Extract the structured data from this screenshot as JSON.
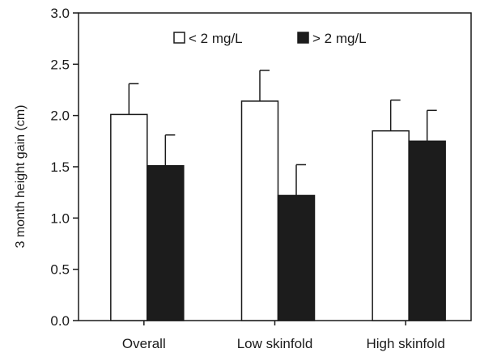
{
  "chart_data": {
    "type": "bar",
    "categories": [
      "Overall",
      "Low skinfold",
      "High skinfold"
    ],
    "series": [
      {
        "name": "< 2 mg/L",
        "values": [
          2.01,
          2.14,
          1.85
        ],
        "errors": [
          0.3,
          0.3,
          0.3
        ],
        "fill": "#ffffff"
      },
      {
        "name": "> 2 mg/L",
        "values": [
          1.51,
          1.22,
          1.75
        ],
        "errors": [
          0.3,
          0.3,
          0.3
        ],
        "fill": "#1c1c1c"
      }
    ],
    "title": "",
    "xlabel": "",
    "ylabel": "3 month height gain (cm)",
    "ylim": [
      0,
      3.0
    ],
    "yticks": [
      "0.0",
      "0.5",
      "1.0",
      "1.5",
      "2.0",
      "2.5",
      "3.0"
    ],
    "grid": false,
    "legend_position": "top-center",
    "colors": {
      "axis": "#1a1a1a",
      "bar_edge": "#1a1a1a"
    }
  }
}
